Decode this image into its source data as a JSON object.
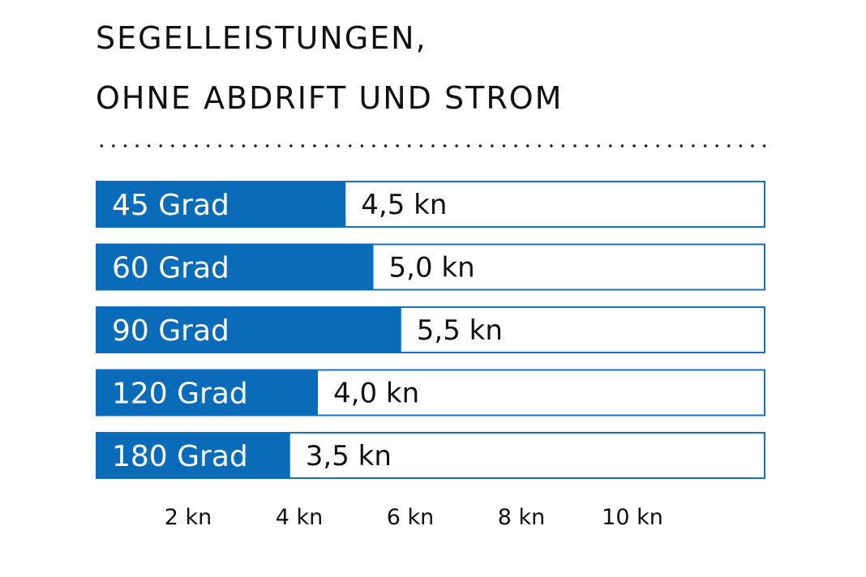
{
  "chart_data": {
    "type": "bar",
    "orientation": "horizontal",
    "title_lines": [
      "SEGELLEISTUNGEN,",
      "OHNE ABDRIFT UND STROM"
    ],
    "categories": [
      "45 Grad",
      "60 Grad",
      "90 Grad",
      "120 Grad",
      "180 Grad"
    ],
    "values": [
      4.5,
      5.0,
      5.5,
      4.0,
      3.5
    ],
    "value_labels": [
      "4,5 kn",
      "5,0 kn",
      "5,5 kn",
      "4,0 kn",
      "3,5 kn"
    ],
    "x_ticks": [
      2,
      4,
      6,
      8,
      10
    ],
    "x_tick_labels": [
      "2 kn",
      "4 kn",
      "6 kn",
      "8 kn",
      "10 kn"
    ],
    "xlim": [
      0,
      12
    ],
    "grid": false,
    "colors": {
      "bar": "#0a6cb8",
      "outline": "#1a6fbd"
    }
  }
}
